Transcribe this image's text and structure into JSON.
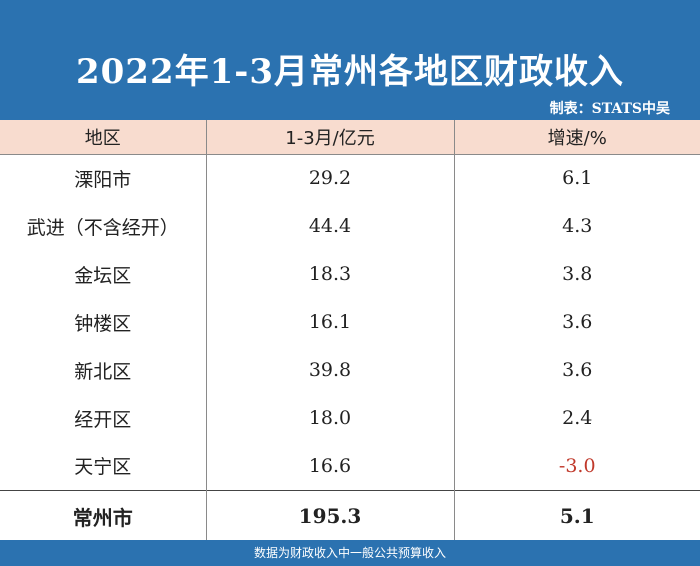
{
  "title": "2022年1-3月常州各地区财政收入",
  "maker": "制表：STATS中吴",
  "colors": {
    "header": "#2b72b0",
    "table_header": "#f8dccf",
    "negative": "#c0392b"
  },
  "table": {
    "headers": [
      "地区",
      "1-3月/亿元",
      "增速/%"
    ],
    "rows": [
      {
        "region": "溧阳市",
        "revenue": "29.2",
        "growth": "6.1"
      },
      {
        "region": "武进（不含经开）",
        "revenue": "44.4",
        "growth": "4.3"
      },
      {
        "region": "金坛区",
        "revenue": "18.3",
        "growth": "3.8"
      },
      {
        "region": "钟楼区",
        "revenue": "16.1",
        "growth": "3.6"
      },
      {
        "region": "新北区",
        "revenue": "39.8",
        "growth": "3.6"
      },
      {
        "region": "经开区",
        "revenue": "18.0",
        "growth": "2.4"
      },
      {
        "region": "天宁区",
        "revenue": "16.6",
        "growth": "-3.0"
      }
    ],
    "total": {
      "region": "常州市",
      "revenue": "195.3",
      "growth": "5.1"
    }
  },
  "footer": "数据为财政收入中一般公共预算收入"
}
